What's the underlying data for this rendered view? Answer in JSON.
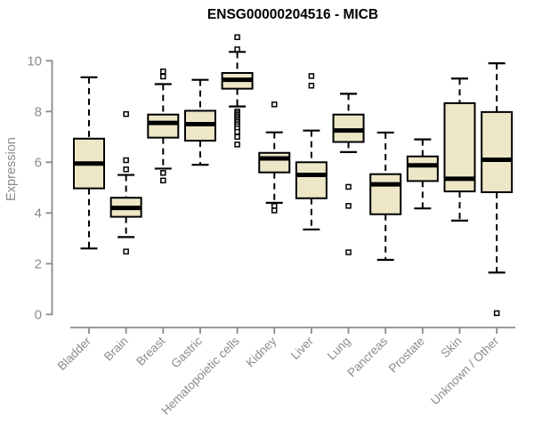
{
  "chart_data": {
    "type": "boxplot",
    "title": "ENSG00000204516 - MICB",
    "ylabel": "Expression",
    "xlabel": "",
    "ylim": [
      -0.5,
      11.0
    ],
    "yticks": [
      0,
      2,
      4,
      6,
      8,
      10
    ],
    "grid": false,
    "legend": "none",
    "box_fill": "#ede7c8",
    "box_border": "#000000",
    "median_color": "#000000",
    "whisker_color": "#000000",
    "axis_color": "#8b8b8b",
    "label_color": "#8b8b8b",
    "title_color": "#000000",
    "categories": [
      "Bladder",
      "Brain",
      "Breast",
      "Gastric",
      "Hematopoietic cells",
      "Kidney",
      "Liver",
      "Lung",
      "Pancreas",
      "Prostate",
      "Skin",
      "Unknown / Other"
    ],
    "series": [
      {
        "category": "Bladder",
        "whisker_low": 2.6,
        "q1": 4.97,
        "median": 5.95,
        "q3": 6.93,
        "whisker_high": 9.35,
        "outliers": []
      },
      {
        "category": "Brain",
        "whisker_low": 3.05,
        "q1": 3.85,
        "median": 4.2,
        "q3": 4.6,
        "whisker_high": 5.5,
        "outliers": [
          7.9,
          6.08,
          5.72,
          2.48
        ]
      },
      {
        "category": "Breast",
        "whisker_low": 5.75,
        "q1": 6.97,
        "median": 7.55,
        "q3": 7.88,
        "whisker_high": 9.08,
        "outliers": [
          9.58,
          9.38,
          5.58,
          5.28
        ]
      },
      {
        "category": "Gastric",
        "whisker_low": 5.9,
        "q1": 6.85,
        "median": 7.5,
        "q3": 8.03,
        "whisker_high": 9.25,
        "outliers": []
      },
      {
        "category": "Hematopoietic cells",
        "whisker_low": 8.2,
        "q1": 8.9,
        "median": 9.25,
        "q3": 9.52,
        "whisker_high": 10.35,
        "outliers": [
          10.93,
          10.45,
          8.0,
          7.93,
          7.86,
          7.79,
          7.72,
          7.65,
          7.58,
          7.5,
          7.42,
          7.33,
          7.2,
          7.0,
          6.7
        ]
      },
      {
        "category": "Kidney",
        "whisker_low": 4.4,
        "q1": 5.6,
        "median": 6.15,
        "q3": 6.37,
        "whisker_high": 7.18,
        "outliers": [
          8.28,
          4.28,
          4.1
        ]
      },
      {
        "category": "Liver",
        "whisker_low": 3.35,
        "q1": 4.58,
        "median": 5.5,
        "q3": 6.0,
        "whisker_high": 7.25,
        "outliers": [
          9.4,
          9.02
        ]
      },
      {
        "category": "Lung",
        "whisker_low": 6.4,
        "q1": 6.8,
        "median": 7.25,
        "q3": 7.88,
        "whisker_high": 8.7,
        "outliers": [
          5.03,
          4.28,
          2.45
        ]
      },
      {
        "category": "Pancreas",
        "whisker_low": 2.15,
        "q1": 3.95,
        "median": 5.13,
        "q3": 5.53,
        "whisker_high": 7.17,
        "outliers": []
      },
      {
        "category": "Prostate",
        "whisker_low": 4.18,
        "q1": 5.26,
        "median": 5.88,
        "q3": 6.23,
        "whisker_high": 6.9,
        "outliers": []
      },
      {
        "category": "Skin",
        "whisker_low": 3.7,
        "q1": 4.85,
        "median": 5.35,
        "q3": 8.33,
        "whisker_high": 9.3,
        "outliers": []
      },
      {
        "category": "Unknown / Other",
        "whisker_low": 1.65,
        "q1": 4.82,
        "median": 6.1,
        "q3": 7.98,
        "whisker_high": 9.9,
        "outliers": [
          0.05
        ]
      }
    ]
  }
}
